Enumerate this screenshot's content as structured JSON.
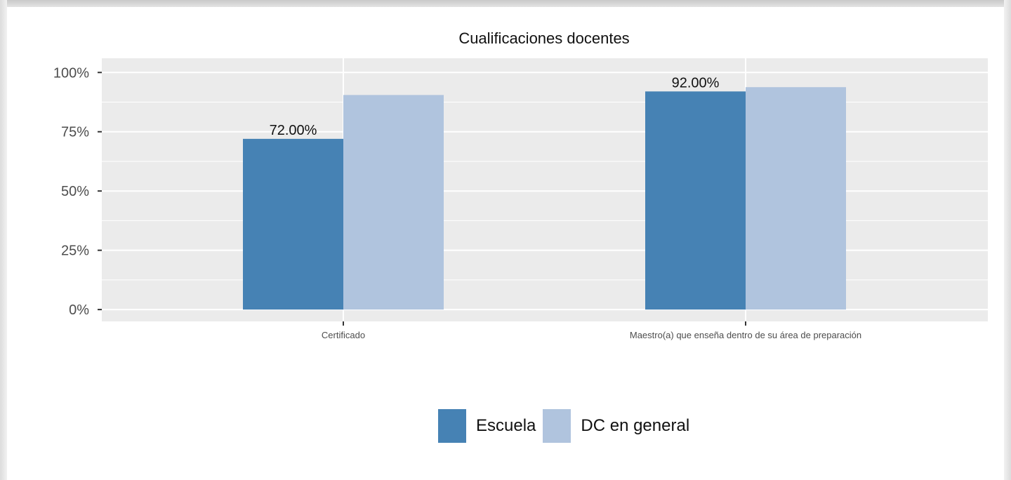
{
  "chart_data": {
    "type": "bar",
    "title": "Cualificaciones docentes",
    "categories": [
      "Certificado",
      "Maestro(a) que enseña dentro de su área de preparación"
    ],
    "series": [
      {
        "name": "Escuela",
        "values": [
          72.0,
          92.0
        ],
        "color": "#4682b4"
      },
      {
        "name": "DC en general",
        "values": [
          90.5,
          93.8
        ],
        "color": "#b0c4de"
      }
    ],
    "data_labels": [
      "72.00%",
      "92.00%"
    ],
    "ylim": [
      -5,
      106
    ],
    "yticks": [
      0,
      25,
      50,
      75,
      100
    ],
    "ytick_labels": [
      "0%",
      "25%",
      "50%",
      "75%",
      "100%"
    ],
    "xlabel": "",
    "ylabel": "",
    "grid": true,
    "legend_position": "bottom",
    "panel_color": "#ebebeb"
  }
}
